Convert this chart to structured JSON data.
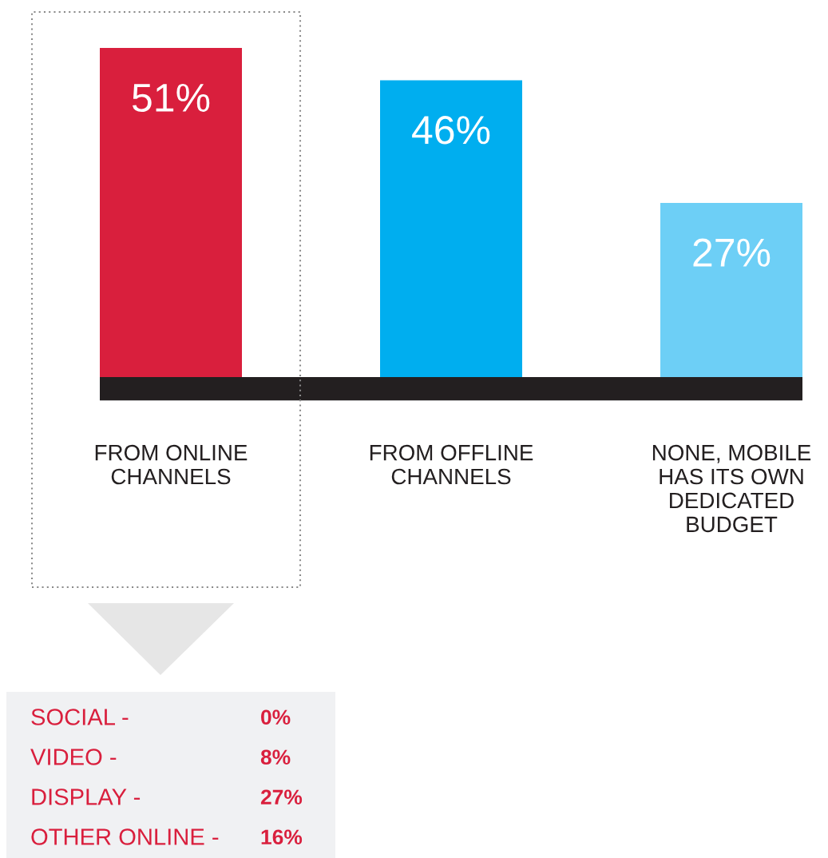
{
  "chart_data": [
    {
      "type": "bar",
      "categories": [
        "FROM ONLINE\nCHANNELS",
        "FROM OFFLINE\nCHANNELS",
        "NONE, MOBILE\nHAS ITS OWN\nDEDICATED\nBUDGET"
      ],
      "values": [
        51,
        46,
        27
      ],
      "colors": [
        "#d91f3d",
        "#00aeef",
        "#6dcff6"
      ],
      "value_labels": [
        "51%",
        "46%",
        "27%"
      ],
      "grid": false,
      "legend": false
    },
    {
      "type": "other",
      "categories": [
        "SOCIAL -",
        "VIDEO -",
        "DISPLAY -",
        "OTHER ONLINE -"
      ],
      "value_labels": [
        "0%",
        "8%",
        "27%",
        "16%"
      ],
      "color": "#d91f3d"
    }
  ]
}
